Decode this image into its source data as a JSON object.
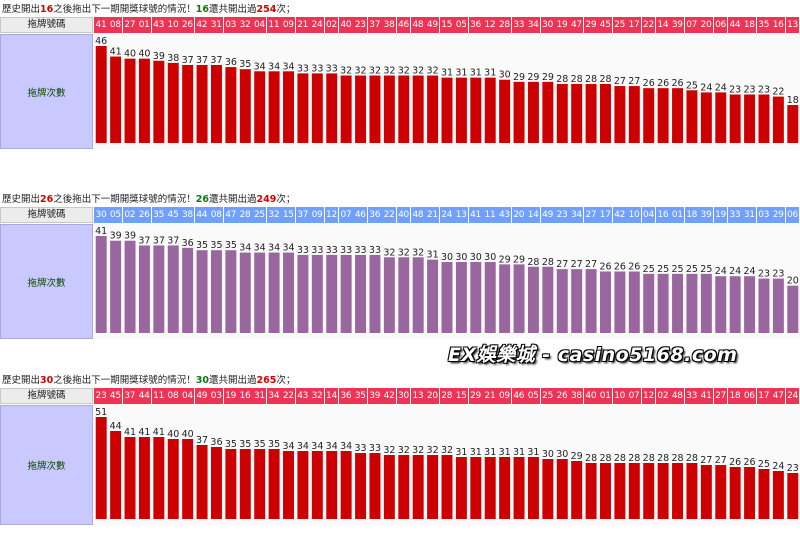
{
  "charts_text": {
    "header_label": "拖牌號碼",
    "side_label": "拖牌次數"
  },
  "watermark": "EX娛樂城 - casino5168.com",
  "chart_data": [
    {
      "type": "bar",
      "title_parts": [
        "歷史開出",
        "16",
        "之後拖出下一期開獎球號的情況！",
        "16",
        "還共開出過",
        "254",
        "次；"
      ],
      "categories": [
        "41",
        "08",
        "27",
        "01",
        "43",
        "10",
        "26",
        "42",
        "31",
        "03",
        "32",
        "04",
        "11",
        "09",
        "21",
        "24",
        "02",
        "40",
        "23",
        "37",
        "38",
        "46",
        "48",
        "49",
        "15",
        "05",
        "36",
        "12",
        "28",
        "33",
        "34",
        "30",
        "19",
        "47",
        "29",
        "45",
        "25",
        "17",
        "22",
        "14",
        "39",
        "07",
        "20",
        "06",
        "44",
        "18",
        "35",
        "16",
        "13"
      ],
      "values": [
        46,
        41,
        40,
        40,
        39,
        38,
        37,
        37,
        37,
        36,
        35,
        34,
        34,
        34,
        33,
        33,
        33,
        32,
        32,
        32,
        32,
        32,
        32,
        32,
        31,
        31,
        31,
        31,
        30,
        29,
        29,
        29,
        28,
        28,
        28,
        28,
        27,
        27,
        26,
        26,
        26,
        25,
        24,
        24,
        23,
        23,
        23,
        22,
        18
      ],
      "bar_color": "#cc0000",
      "header_color": "#ee3355",
      "ylim": [
        0,
        46
      ]
    },
    {
      "type": "bar",
      "title_parts": [
        "歷史開出",
        "26",
        "之後拖出下一期開獎球號的情況！",
        "26",
        "還共開出過",
        "249",
        "次；"
      ],
      "categories": [
        "30",
        "05",
        "02",
        "26",
        "35",
        "45",
        "38",
        "44",
        "08",
        "47",
        "28",
        "25",
        "32",
        "15",
        "37",
        "09",
        "12",
        "07",
        "46",
        "36",
        "22",
        "40",
        "48",
        "21",
        "24",
        "13",
        "41",
        "11",
        "43",
        "20",
        "14",
        "49",
        "23",
        "34",
        "27",
        "17",
        "42",
        "10",
        "04",
        "16",
        "01",
        "18",
        "39",
        "19",
        "33",
        "31",
        "03",
        "29",
        "06"
      ],
      "values": [
        41,
        39,
        39,
        37,
        37,
        37,
        36,
        35,
        35,
        35,
        34,
        34,
        34,
        34,
        33,
        33,
        33,
        33,
        33,
        33,
        32,
        32,
        32,
        31,
        30,
        30,
        30,
        30,
        29,
        29,
        28,
        28,
        27,
        27,
        27,
        26,
        26,
        26,
        25,
        25,
        25,
        25,
        25,
        24,
        24,
        24,
        23,
        23,
        20
      ],
      "bar_color": "#9966a0",
      "header_color": "#6fa0ff",
      "ylim": [
        0,
        41
      ]
    },
    {
      "type": "bar",
      "title_parts": [
        "歷史開出",
        "30",
        "之後拖出下一期開獎球號的情況！",
        "30",
        "還共開出過",
        "265",
        "次；"
      ],
      "categories": [
        "23",
        "45",
        "37",
        "44",
        "11",
        "08",
        "04",
        "49",
        "03",
        "19",
        "16",
        "31",
        "34",
        "22",
        "43",
        "32",
        "14",
        "36",
        "35",
        "39",
        "42",
        "30",
        "13",
        "20",
        "28",
        "15",
        "29",
        "21",
        "09",
        "46",
        "05",
        "25",
        "26",
        "38",
        "40",
        "01",
        "10",
        "07",
        "12",
        "02",
        "48",
        "33",
        "41",
        "27",
        "18",
        "06",
        "17",
        "47",
        "24"
      ],
      "values": [
        51,
        44,
        41,
        41,
        41,
        40,
        40,
        37,
        36,
        35,
        35,
        35,
        35,
        34,
        34,
        34,
        34,
        34,
        33,
        33,
        32,
        32,
        32,
        32,
        32,
        31,
        31,
        31,
        31,
        31,
        31,
        30,
        30,
        29,
        28,
        28,
        28,
        28,
        28,
        28,
        28,
        28,
        27,
        27,
        26,
        26,
        25,
        24,
        23
      ],
      "bar_color": "#cc0000",
      "header_color": "#ee3355",
      "ylim": [
        0,
        51
      ]
    }
  ]
}
